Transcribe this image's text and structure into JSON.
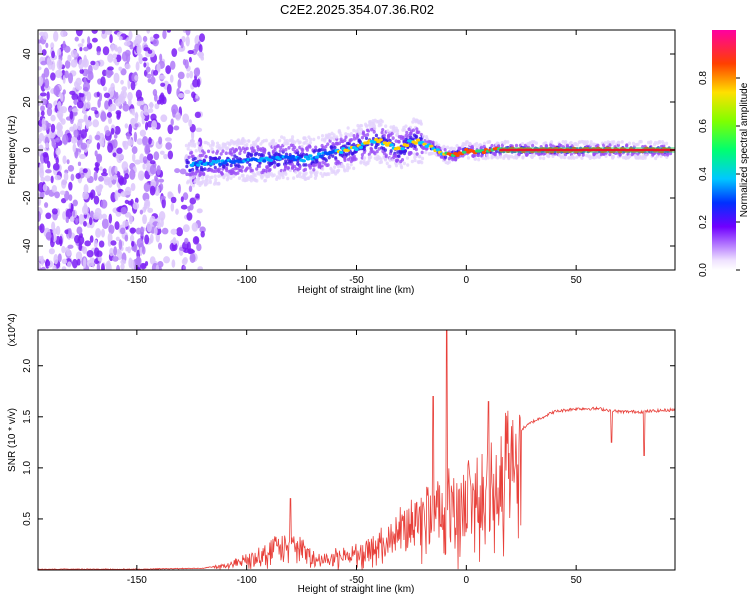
{
  "title": "C2E2.2025.354.07.36.R02",
  "chart_data": [
    {
      "type": "heatmap",
      "xlabel": "Height of straight line (km)",
      "ylabel": "Frequency (Hz)",
      "xlim": [
        -195,
        95
      ],
      "ylim": [
        -50,
        50
      ],
      "x_ticks": [
        -150,
        -100,
        -50,
        0,
        50
      ],
      "y_ticks": [
        -40,
        -20,
        0,
        20,
        40
      ],
      "colorbar": {
        "label": "Normalized spectral amplitude",
        "range": [
          0,
          1
        ],
        "ticks": [
          0.0,
          0.2,
          0.4,
          0.6,
          0.8
        ]
      },
      "ridge": {
        "x": [
          -125,
          -110,
          -100,
          -90,
          -80,
          -75,
          -70,
          -60,
          -50,
          -45,
          -40,
          -35,
          -30,
          -25,
          -20,
          -15,
          -10,
          -5,
          0,
          5,
          10,
          20,
          40,
          60,
          80,
          95
        ],
        "y": [
          -6,
          -5,
          -4,
          -4,
          -3,
          -4,
          -3,
          -1,
          1,
          3,
          4,
          2,
          0,
          4,
          3,
          1,
          -2,
          -2,
          0,
          -1,
          0,
          0,
          0,
          0,
          0,
          0
        ]
      },
      "noise_region_x": [
        -195,
        -128
      ]
    },
    {
      "type": "line",
      "xlabel": "Height of straight line (km)",
      "ylabel": "SNR (10 * v/v)",
      "y_multiplier": "(x10^4)",
      "xlim": [
        -195,
        95
      ],
      "ylim": [
        0,
        2.35
      ],
      "x_ticks": [
        -150,
        -100,
        -50,
        0,
        50
      ],
      "y_ticks": [
        0.5,
        1.0,
        1.5,
        2.0
      ],
      "color": "#e8403a",
      "envelope": {
        "x": [
          -195,
          -150,
          -120,
          -110,
          -100,
          -90,
          -80,
          -75,
          -70,
          -60,
          -50,
          -40,
          -30,
          -20,
          -10,
          0,
          10,
          20,
          30,
          40,
          50,
          60,
          70,
          80,
          95
        ],
        "y": [
          0.01,
          0.01,
          0.02,
          0.05,
          0.15,
          0.25,
          0.32,
          0.28,
          0.15,
          0.18,
          0.22,
          0.35,
          0.55,
          0.7,
          0.8,
          0.9,
          1.1,
          1.3,
          1.45,
          1.55,
          1.58,
          1.58,
          1.55,
          1.55,
          1.57
        ]
      },
      "peaks": [
        {
          "x": -80,
          "y": 0.7
        },
        {
          "x": -15,
          "y": 1.7
        },
        {
          "x": -9,
          "y": 2.35
        },
        {
          "x": 10,
          "y": 1.65
        }
      ],
      "dips": [
        {
          "x": 66,
          "y": 1.25
        },
        {
          "x": 81,
          "y": 1.12
        }
      ]
    }
  ]
}
